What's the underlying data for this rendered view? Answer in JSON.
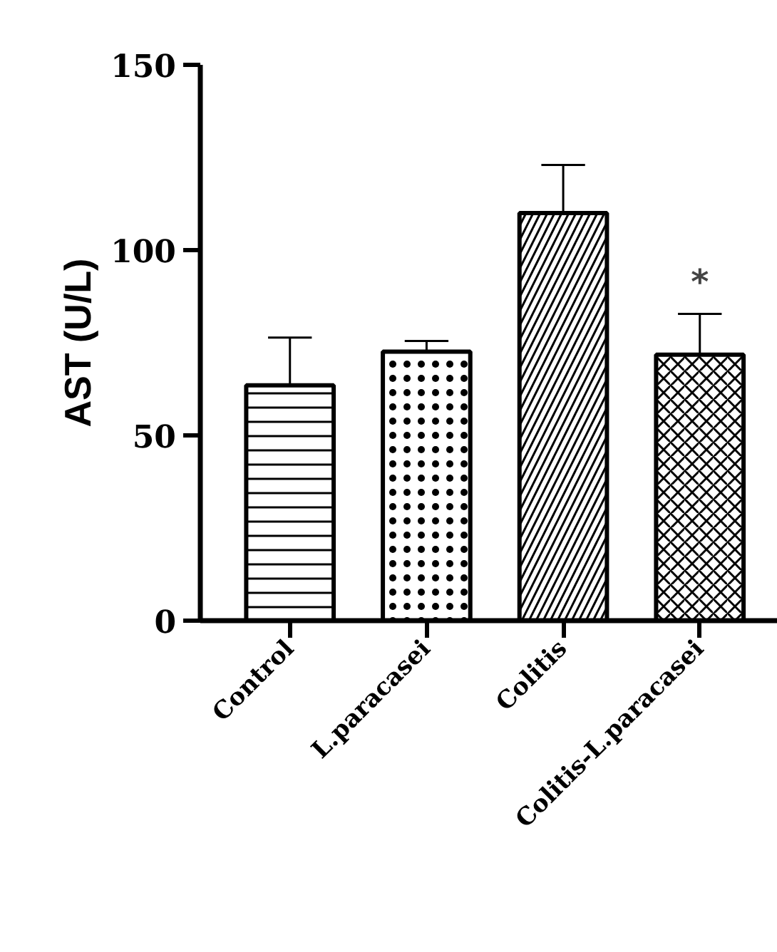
{
  "chart_data": {
    "type": "bar",
    "ylabel": "AST (U/L)",
    "categories": [
      "Control",
      "L.paracasei",
      "Colitis",
      "Colitis-L.paracasei"
    ],
    "values": [
      63.5,
      72.6,
      110,
      71.8
    ],
    "errors": [
      [
        63.5,
        76.4
      ],
      [
        72.6,
        75.5
      ],
      [
        110,
        123
      ],
      [
        71.8,
        82.8
      ]
    ],
    "color": "#000000",
    "ylim": [
      0,
      150
    ],
    "yticks": [
      0,
      50,
      100,
      150
    ],
    "grid": false,
    "annotations": [
      "*"
    ]
  }
}
